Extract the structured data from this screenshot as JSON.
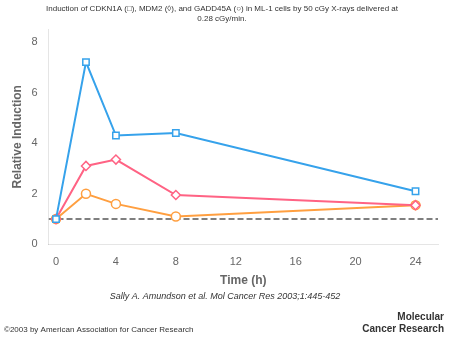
{
  "chart_data": {
    "type": "line",
    "title": "Induction of CDKN1A (□), MDM2 (◊), and GADD45A (○) in ML-1 cells by 50 cGy X-rays delivered at\n0.28 cGy/min.",
    "xlabel": "Time (h)",
    "ylabel": "Relative Induction",
    "annotations": [
      "Sally A. Amundson et al. Mol Cancer Res 2003;1:445-452",
      "©2003 by American Association for Cancer Research",
      "Molecular\nCancer Research"
    ],
    "x": [
      0,
      2,
      4,
      8,
      24
    ],
    "series": [
      {
        "marker": "square",
        "values": [
          1.0,
          7.2,
          4.3,
          4.4,
          2.1
        ]
      },
      {
        "marker": "diamond",
        "values": [
          1.0,
          3.1,
          3.35,
          1.95,
          1.55
        ]
      },
      {
        "marker": "circle",
        "values": [
          1.0,
          2.0,
          1.6,
          1.1,
          1.55
        ]
      }
    ],
    "reference_lines": [
      {
        "y": 1.0,
        "line_style": "dashed"
      }
    ],
    "xlim": [
      -0.5,
      25.5
    ],
    "ylim": [
      0,
      8.5
    ],
    "xticks": [
      0,
      4,
      8,
      12,
      16,
      20,
      24
    ],
    "yticks": [
      0,
      2,
      4,
      6,
      8
    ],
    "grid": false
  }
}
